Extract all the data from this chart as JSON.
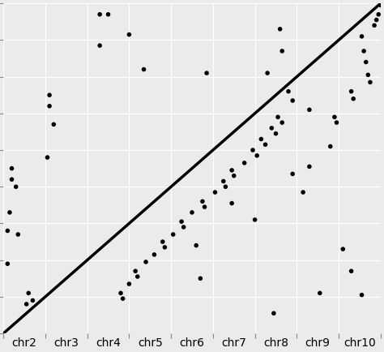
{
  "title": "",
  "xlabel": "",
  "ylabel": "",
  "bg_color": "#EBEBEB",
  "grid_color": "#FFFFFF",
  "line_color": "#000000",
  "point_color": "#000000",
  "point_size": 16,
  "line_width": 2.5,
  "categories": [
    "chr2",
    "chr3",
    "chr4",
    "chr5",
    "chr6",
    "chr7",
    "chr8",
    "chr9",
    "chr10"
  ],
  "n_categories": 9,
  "tick_label_fontsize": 10,
  "points": [
    [
      2.3,
      8.7
    ],
    [
      2.5,
      8.7
    ],
    [
      2.3,
      7.85
    ],
    [
      1.1,
      6.5
    ],
    [
      1.1,
      6.2
    ],
    [
      1.2,
      5.7
    ],
    [
      1.05,
      4.8
    ],
    [
      0.2,
      4.5
    ],
    [
      0.2,
      4.2
    ],
    [
      0.3,
      4.0
    ],
    [
      0.15,
      3.3
    ],
    [
      0.1,
      2.8
    ],
    [
      0.35,
      2.7
    ],
    [
      0.1,
      1.9
    ],
    [
      0.6,
      1.1
    ],
    [
      0.7,
      0.9
    ],
    [
      0.55,
      0.8
    ],
    [
      3.0,
      8.15
    ],
    [
      3.35,
      7.2
    ],
    [
      4.85,
      7.1
    ],
    [
      6.6,
      8.3
    ],
    [
      6.65,
      7.7
    ],
    [
      6.3,
      7.1
    ],
    [
      6.8,
      6.6
    ],
    [
      6.9,
      6.35
    ],
    [
      6.55,
      5.9
    ],
    [
      6.65,
      5.75
    ],
    [
      6.4,
      5.6
    ],
    [
      6.5,
      5.45
    ],
    [
      6.15,
      5.3
    ],
    [
      6.25,
      5.15
    ],
    [
      5.95,
      5.0
    ],
    [
      6.05,
      4.85
    ],
    [
      5.75,
      4.65
    ],
    [
      5.45,
      4.45
    ],
    [
      5.5,
      4.3
    ],
    [
      5.25,
      4.15
    ],
    [
      5.3,
      4.0
    ],
    [
      5.05,
      3.85
    ],
    [
      4.75,
      3.6
    ],
    [
      4.8,
      3.45
    ],
    [
      4.5,
      3.3
    ],
    [
      4.25,
      3.05
    ],
    [
      4.3,
      2.9
    ],
    [
      4.05,
      2.7
    ],
    [
      3.8,
      2.5
    ],
    [
      3.85,
      2.35
    ],
    [
      3.6,
      2.15
    ],
    [
      3.4,
      1.95
    ],
    [
      3.15,
      1.7
    ],
    [
      3.2,
      1.55
    ],
    [
      3.0,
      1.35
    ],
    [
      2.8,
      1.1
    ],
    [
      2.85,
      0.95
    ],
    [
      4.6,
      2.4
    ],
    [
      4.7,
      1.5
    ],
    [
      5.45,
      3.55
    ],
    [
      7.3,
      6.1
    ],
    [
      6.0,
      3.1
    ],
    [
      6.9,
      4.35
    ],
    [
      7.8,
      5.1
    ],
    [
      8.3,
      6.6
    ],
    [
      8.35,
      6.4
    ],
    [
      7.9,
      5.9
    ],
    [
      7.95,
      5.75
    ],
    [
      8.55,
      8.1
    ],
    [
      8.6,
      7.7
    ],
    [
      8.65,
      7.4
    ],
    [
      8.7,
      7.05
    ],
    [
      8.75,
      6.85
    ],
    [
      8.85,
      8.4
    ],
    [
      8.9,
      8.55
    ],
    [
      8.95,
      8.7
    ],
    [
      9.0,
      8.95
    ],
    [
      7.15,
      3.85
    ],
    [
      7.3,
      4.55
    ],
    [
      8.1,
      2.3
    ],
    [
      8.3,
      1.7
    ],
    [
      8.55,
      1.05
    ],
    [
      7.55,
      1.1
    ],
    [
      6.45,
      0.55
    ]
  ],
  "line_points": [
    [
      0.0,
      0.0
    ],
    [
      9.0,
      9.0
    ]
  ]
}
